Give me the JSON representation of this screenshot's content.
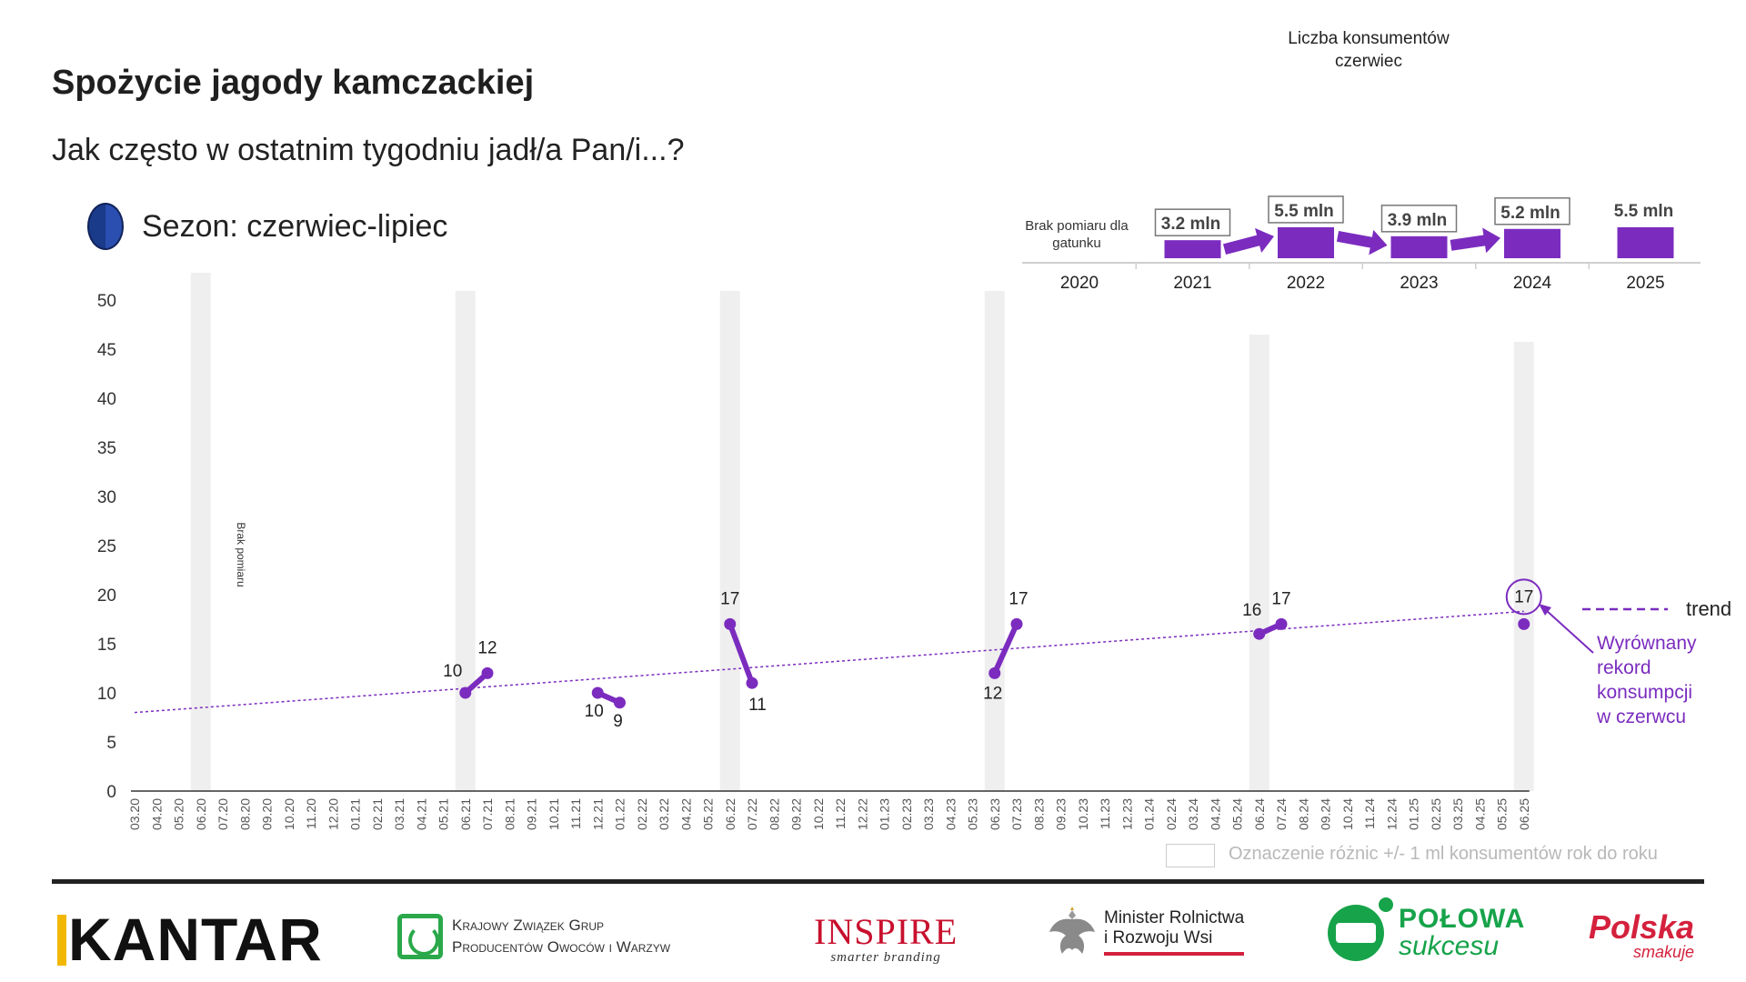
{
  "page": {
    "title": "Spożycie jagody kamczackiej",
    "subtitle": "Jak często w ostatnim tygodniu jadł/a Pan/i...?",
    "season_label": "Sezon: czerwiec-lipiec",
    "season_icon": "blueberry-icon",
    "consumers_title_line1": "Liczba konsumentów",
    "consumers_title_line2": "czerwiec",
    "legend_note": "Oznaczenie różnic +/- 1 ml konsumentów rok do roku",
    "no_data_year_note_line1": "Brak pomiaru dla",
    "no_data_year_note_line2": "gatunku",
    "brak_pomiaru": "Brak pomiaru",
    "trend_label": "trend",
    "annotation_line1": "Wyrównany",
    "annotation_line2": "rekord",
    "annotation_line3": "konsumpcji",
    "annotation_line4": "w czerwcu"
  },
  "colors": {
    "accent": "#7b2cbf",
    "band": "#efefef",
    "text": "#222222"
  },
  "chart_data": [
    {
      "type": "line",
      "ylim": [
        0,
        50
      ],
      "yticks": [
        0,
        5,
        10,
        15,
        20,
        25,
        30,
        35,
        40,
        45,
        50
      ],
      "months": [
        "03.20",
        "04.20",
        "05.20",
        "06.20",
        "07.20",
        "08.20",
        "09.20",
        "10.20",
        "11.20",
        "12.20",
        "01.21",
        "02.21",
        "03.21",
        "04.21",
        "05.21",
        "06.21",
        "07.21",
        "08.21",
        "09.21",
        "10.21",
        "11.21",
        "12.21",
        "01.22",
        "02.22",
        "03.22",
        "04.22",
        "05.22",
        "06.22",
        "07.22",
        "08.22",
        "09.22",
        "10.22",
        "11.22",
        "12.22",
        "01.23",
        "02.23",
        "03.23",
        "04.23",
        "05.23",
        "06.23",
        "07.23",
        "08.23",
        "09.23",
        "10.23",
        "11.23",
        "12.23",
        "01.24",
        "02.24",
        "03.24",
        "04.24",
        "05.24",
        "06.24",
        "07.24",
        "08.24",
        "09.24",
        "10.24",
        "11.24",
        "12.24",
        "01.25",
        "02.25",
        "03.25",
        "04.25",
        "05.25",
        "06.25"
      ],
      "season_bands": [
        "06.20",
        "06.21",
        "06.22",
        "06.23",
        "06.24",
        "06.25"
      ],
      "segments": [
        {
          "points": [
            {
              "x": "06.21",
              "y": 10,
              "label": "10"
            },
            {
              "x": "07.21",
              "y": 12,
              "label": "12"
            }
          ]
        },
        {
          "points": [
            {
              "x": "12.21",
              "y": 10,
              "label": "10"
            },
            {
              "x": "01.22",
              "y": 9,
              "label": "9"
            }
          ]
        },
        {
          "points": [
            {
              "x": "06.22",
              "y": 17,
              "label": "17"
            },
            {
              "x": "07.22",
              "y": 11,
              "label": "11"
            }
          ]
        },
        {
          "points": [
            {
              "x": "06.23",
              "y": 12,
              "label": "12"
            },
            {
              "x": "07.23",
              "y": 17,
              "label": "17"
            }
          ]
        },
        {
          "points": [
            {
              "x": "06.24",
              "y": 16,
              "label": "16"
            },
            {
              "x": "07.24",
              "y": 17,
              "label": "17"
            }
          ]
        },
        {
          "points": [
            {
              "x": "06.25",
              "y": 17,
              "label": "17"
            }
          ]
        }
      ],
      "trend": {
        "start": {
          "x": "03.20",
          "y": 8
        },
        "end": {
          "x": "06.25",
          "y": 18.3
        }
      }
    },
    {
      "type": "bar",
      "title": "Liczba konsumentów czerwiec",
      "categories": [
        "2020",
        "2021",
        "2022",
        "2023",
        "2024",
        "2025"
      ],
      "values": [
        null,
        3.2,
        5.5,
        3.9,
        5.2,
        5.5
      ],
      "labels": [
        "",
        "3.2 mln",
        "5.5 mln",
        "3.9 mln",
        "5.2 mln",
        "5.5 mln"
      ],
      "boxed": [
        false,
        true,
        true,
        true,
        true,
        false
      ],
      "arrows_between": [
        [
          "2021",
          "2022"
        ],
        [
          "2022",
          "2023"
        ],
        [
          "2023",
          "2024"
        ]
      ]
    }
  ],
  "logos": {
    "kantar": "KANTAR",
    "kzgp_line1": "Krajowy Związek Grup",
    "kzgp_line2": "Producentów Owoców i Warzyw",
    "inspire_main": "INSPIRE",
    "inspire_sub": "smarter branding",
    "minister_line1": "Minister Rolnictwa",
    "minister_line2": "i Rozwoju Wsi",
    "polowa_a": "POŁOWA",
    "polowa_b": "sukcesu",
    "polska_a": "Polska",
    "polska_b": "smakuje"
  }
}
